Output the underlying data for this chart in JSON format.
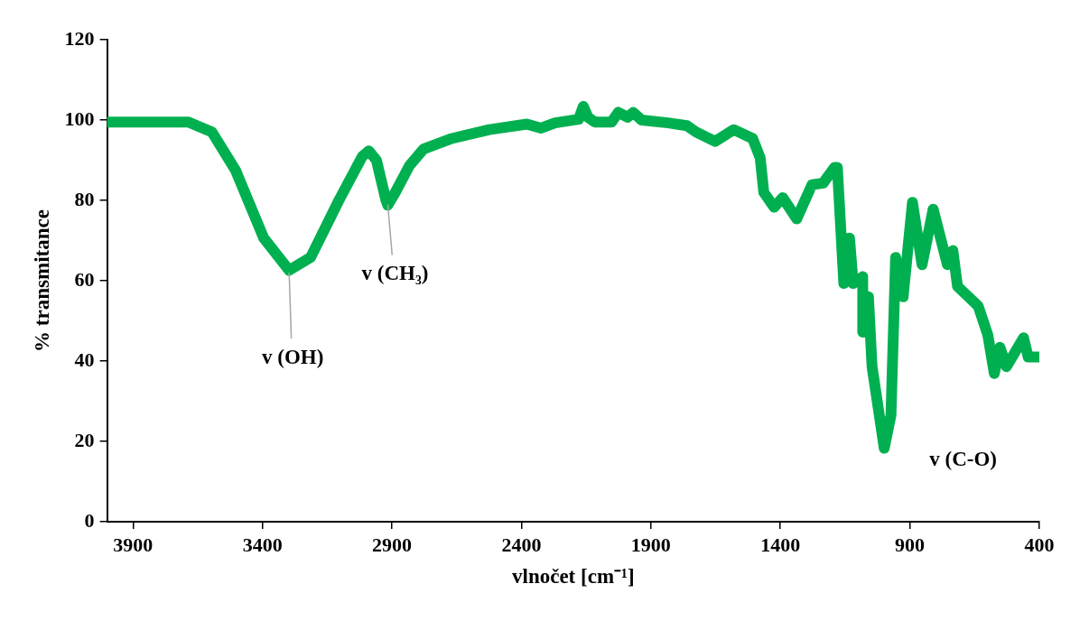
{
  "chart_data": {
    "type": "line",
    "xlabel": "vlnočet [cm⁻¹]",
    "ylabel": "% transmitance",
    "xlim": [
      4000,
      400
    ],
    "xticks": [
      3900,
      3400,
      2900,
      2400,
      1900,
      1400,
      900,
      400
    ],
    "ylim": [
      0,
      120
    ],
    "yticks": [
      0,
      20,
      40,
      60,
      80,
      100,
      120
    ],
    "grid": false,
    "legend": false,
    "marker": "none",
    "line_style": "solid",
    "series": [
      {
        "color": "#00b050",
        "x": [
          4000,
          3686,
          3595,
          3504,
          3395,
          3297,
          3214,
          3105,
          3014,
          2989,
          2960,
          2923,
          2916,
          2887,
          2832,
          2778,
          2669,
          2524,
          2379,
          2324,
          2270,
          2179,
          2161,
          2143,
          2117,
          2052,
          2026,
          1990,
          1968,
          1936,
          1834,
          1761,
          1725,
          1652,
          1580,
          1507,
          1478,
          1464,
          1424,
          1391,
          1337,
          1278,
          1235,
          1191,
          1180,
          1155,
          1133,
          1119,
          1082,
          1082,
          1060,
          1046,
          999,
          973,
          955,
          926,
          890,
          853,
          810,
          755,
          734,
          716,
          636,
          599,
          574,
          552,
          527,
          461,
          443,
          400
        ],
        "values": [
          99.5,
          99.5,
          97,
          87.5,
          70.6,
          62.6,
          65.8,
          80,
          91,
          92.3,
          90,
          80,
          78.8,
          82,
          88.7,
          92.8,
          95.4,
          97.6,
          99,
          98,
          99.3,
          100.2,
          103.4,
          100.7,
          99.5,
          99.5,
          101.9,
          100.7,
          101.9,
          100,
          99.3,
          98.6,
          97,
          94.7,
          97.6,
          95.4,
          90.6,
          82,
          78.3,
          80.7,
          75.4,
          83.9,
          84.3,
          88.2,
          88.2,
          59.3,
          70.6,
          59.3,
          61,
          47.2,
          56,
          38.6,
          18.3,
          26.5,
          65.8,
          56,
          79.5,
          64,
          77.8,
          64,
          67.5,
          58.6,
          53.7,
          46.5,
          36.9,
          43.4,
          38.6,
          45.8,
          41,
          41
        ]
      }
    ],
    "annotations": [
      {
        "text": "v (OH)",
        "x": 3297,
        "y": 62
      },
      {
        "text": "v (CH₃)",
        "x": 2916,
        "y": 79
      },
      {
        "text": "v (C-O)",
        "x": 999,
        "y": 18
      }
    ]
  }
}
